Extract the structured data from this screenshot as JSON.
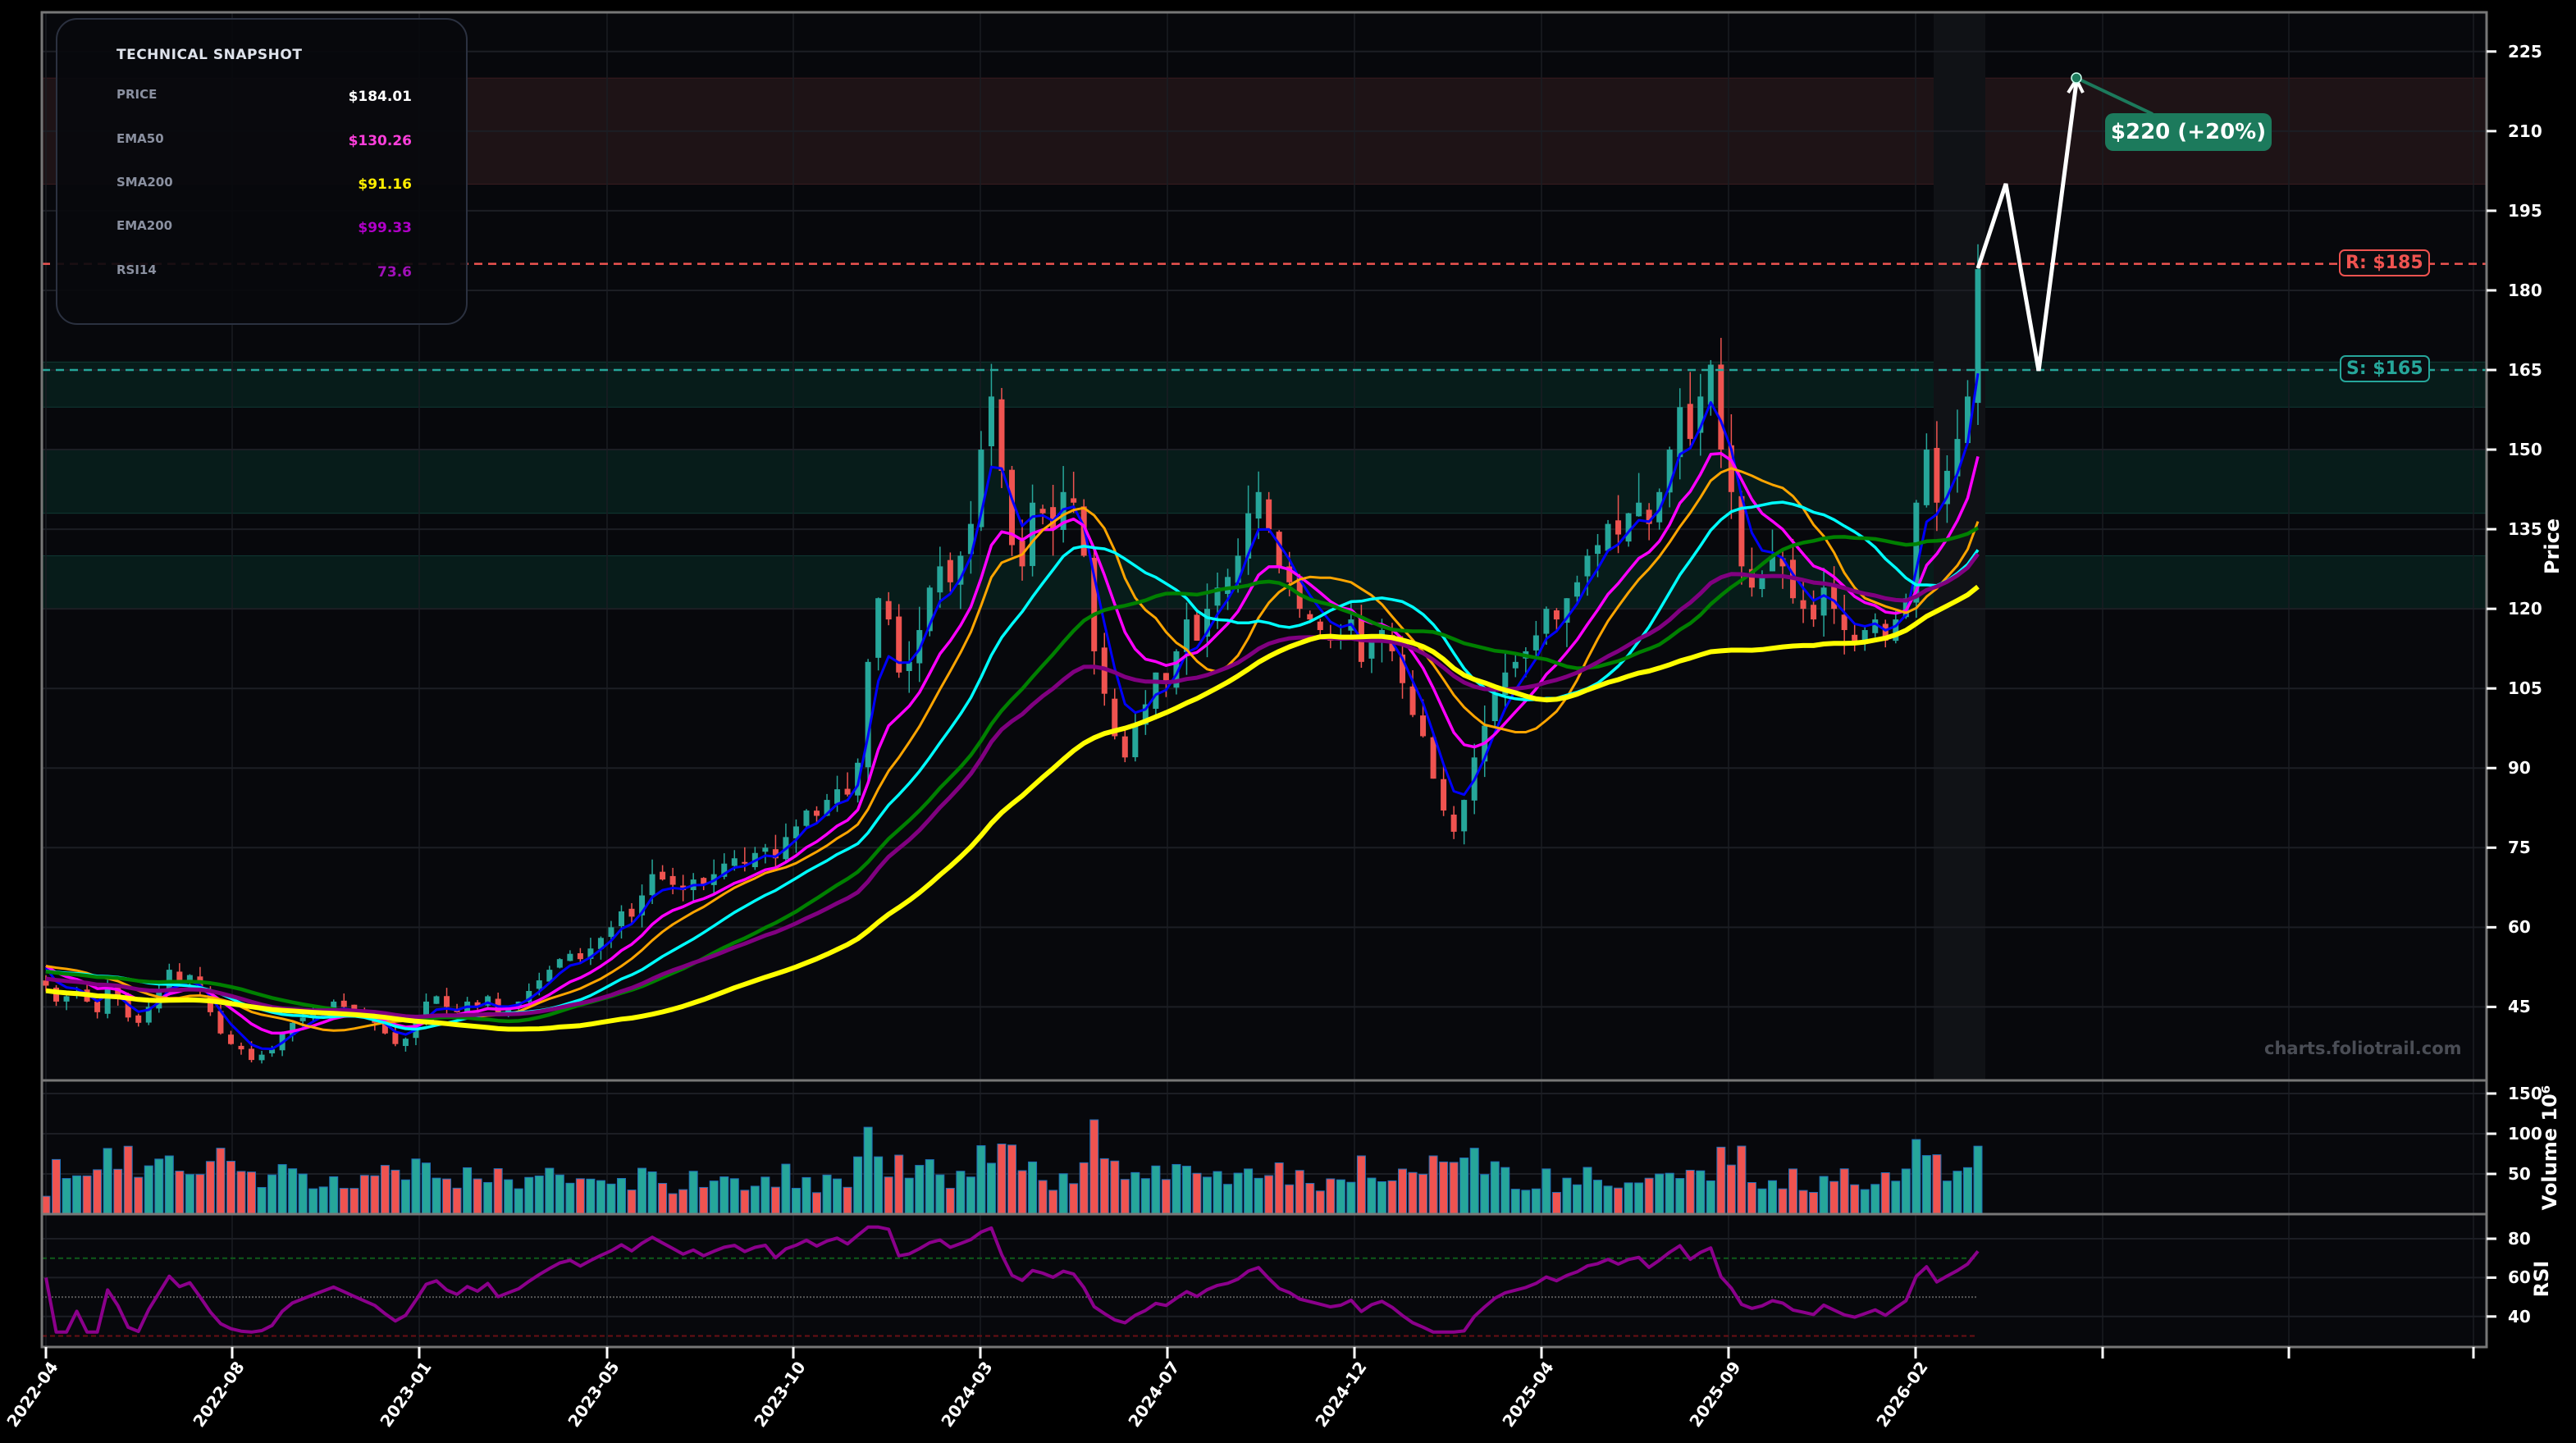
{
  "snapshot": {
    "title": "TECHNICAL SNAPSHOT",
    "rows": [
      {
        "label": "PRICE",
        "value": "$184.01",
        "color": "#ffffff"
      },
      {
        "label": "EMA50",
        "value": "$130.26",
        "color": "#ff3fdc"
      },
      {
        "label": "SMA200",
        "value": "$91.16",
        "color": "#ffee00"
      },
      {
        "label": "EMA200",
        "value": "$99.33",
        "color": "#b000c8"
      },
      {
        "label": "RSI14",
        "value": "73.6",
        "color": "#a010b8"
      }
    ]
  },
  "levels": {
    "resistance_label": "R: $185",
    "support_label": "S: $165",
    "resistance_color": "#ef5350",
    "support_color": "#26a69a"
  },
  "projection": {
    "label": "$220 (+20%)",
    "color": "#1c7a5c"
  },
  "watermark": "charts.foliotrail.com",
  "axes": {
    "price_label": "Price",
    "volume_label": "Volume  10⁶",
    "rsi_label": "RSI"
  },
  "colors": {
    "background": "#07080c",
    "up": "#26a69a",
    "down": "#ef5350",
    "ema_fast": "#0000ff",
    "ema50": "#ff00ff",
    "sma50": "#ffa500",
    "sma100": "#00ffff",
    "sma150": "#008000",
    "ema200": "#800080",
    "sma200": "#ffff00",
    "rsi": "#8b008b"
  },
  "chart_data": {
    "type": "candlestick",
    "title": "",
    "xlabel": "",
    "ylabel": "Price",
    "ylim": [
      31,
      229
    ],
    "y_ticks": [
      45,
      60,
      75,
      90,
      105,
      120,
      135,
      150,
      165,
      180,
      195,
      210,
      225
    ],
    "x_ticks": [
      "2022-04",
      "2022-08",
      "2023-01",
      "2023-05",
      "2023-10",
      "2024-03",
      "2024-07",
      "2024-12",
      "2025-04",
      "2025-09",
      "2026-02"
    ],
    "weekly_close": [
      49,
      46,
      47,
      48,
      46,
      44,
      49,
      47,
      43,
      42,
      45,
      48,
      52,
      50,
      51,
      48,
      44,
      40,
      38,
      37,
      35,
      36,
      37,
      40,
      42,
      43,
      44,
      45,
      46,
      45,
      44,
      43,
      42,
      40,
      38,
      39,
      42,
      46,
      47,
      45,
      44,
      46,
      45,
      47,
      44,
      45,
      46,
      48,
      50,
      52,
      54,
      55,
      54,
      56,
      58,
      60,
      63,
      62,
      66,
      70,
      69,
      68,
      67,
      69,
      68,
      70,
      72,
      73,
      72,
      74,
      75,
      73,
      77,
      79,
      82,
      81,
      84,
      86,
      85,
      91,
      110,
      122,
      118,
      108,
      110,
      116,
      124,
      128,
      125,
      130,
      136,
      150,
      160,
      146,
      132,
      128,
      140,
      138,
      135,
      142,
      140,
      130,
      112,
      104,
      96,
      92,
      98,
      102,
      108,
      106,
      112,
      118,
      114,
      120,
      124,
      126,
      130,
      138,
      142,
      135,
      128,
      125,
      120,
      118,
      116,
      114,
      115,
      118,
      110,
      114,
      116,
      112,
      106,
      100,
      96,
      88,
      82,
      78,
      84,
      92,
      98,
      104,
      108,
      110,
      112,
      115,
      120,
      118,
      122,
      125,
      130,
      132,
      136,
      134,
      138,
      140,
      136,
      142,
      150,
      158,
      152,
      160,
      166,
      150,
      142,
      128,
      124,
      126,
      130,
      128,
      122,
      120,
      118,
      124,
      120,
      116,
      114,
      116,
      118,
      114,
      118,
      122,
      140,
      150,
      140,
      146,
      152,
      160,
      184
    ],
    "support_zones": [
      [
        158,
        166.5
      ],
      [
        138,
        150
      ],
      [
        120,
        130
      ]
    ],
    "resistance_zone": [
      200,
      220
    ],
    "resistance_level": 185,
    "support_level": 165,
    "projection_path": [
      [
        0,
        184
      ],
      [
        1,
        200
      ],
      [
        2,
        165
      ],
      [
        3,
        220
      ]
    ],
    "projection_target": 220,
    "projection_pct": 20,
    "indicators": {
      "PRICE": 184.01,
      "EMA50": 130.26,
      "SMA200": 91.16,
      "EMA200": 99.33,
      "RSI14": 73.6
    },
    "volume": {
      "ylabel": "Volume 10^6",
      "ticks": [
        50,
        100,
        150
      ],
      "peak": 150
    },
    "rsi": {
      "ylabel": "RSI",
      "ticks": [
        40,
        60,
        80
      ],
      "overbought": 70,
      "oversold": 30,
      "mid": 50
    }
  }
}
